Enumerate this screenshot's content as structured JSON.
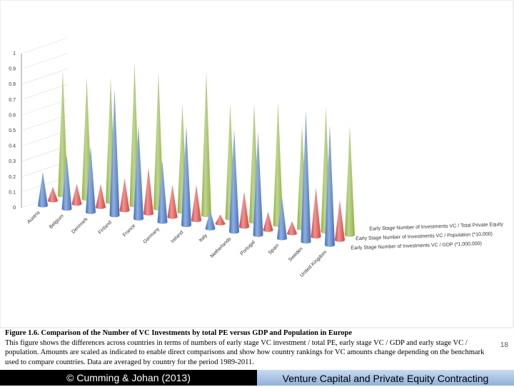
{
  "chart_data": {
    "type": "cone3d",
    "categories": [
      "Austria",
      "Belgium",
      "Denmark",
      "Finland",
      "France",
      "Germany",
      "Ireland",
      "Italy",
      "Netherlands",
      "Portugal",
      "Spain",
      "Sweden",
      "United Kingdom"
    ],
    "series": [
      {
        "name": "Early Stage Number of Investments VC / Total Private Equity",
        "color": "#8db33a",
        "values": [
          0.81,
          0.79,
          0.81,
          0.93,
          0.89,
          0.7,
          0.94,
          0.75,
          0.77,
          0.8,
          0.67,
          0.81,
          0.71
        ]
      },
      {
        "name": "Early Stage Number of Investments VC / Population (*10,000)",
        "color": "#d9413f",
        "values": [
          0.09,
          0.13,
          0.15,
          0.21,
          0.3,
          0.21,
          0.23,
          0.06,
          0.23,
          0.12,
          0.08,
          0.32,
          0.26
        ]
      },
      {
        "name": "Early Stage Number of Investments VC / GDP (*1,000,000)",
        "color": "#3c6fc0",
        "values": [
          0.22,
          0.35,
          0.43,
          0.82,
          0.61,
          0.4,
          0.65,
          0.12,
          0.67,
          0.67,
          0.27,
          0.85,
          0.78
        ]
      }
    ],
    "ylim": [
      0,
      1
    ],
    "yticks": [
      0,
      0.1,
      0.2,
      0.3,
      0.4,
      0.5,
      0.6,
      0.7,
      0.8,
      0.9,
      1
    ],
    "grid": true
  },
  "caption": {
    "title": "Figure 1.6. Comparison of the Number of VC Investments by total PE versus GDP and Population in Europe",
    "body": "This figure shows the differences across countries in terms of numbers of early stage VC investment / total PE, early stage VC / GDP and early stage VC / population.  Amounts are scaled as indicated to enable direct comparisons and show how country rankings for VC amounts change depending on the benchmark used to compare countries.  Data are averaged by country for the period 1989-2011."
  },
  "page_number": "18",
  "footer": {
    "left": "© Cumming & Johan (2013)",
    "right": "Venture Capital and Private Equity Contracting"
  }
}
